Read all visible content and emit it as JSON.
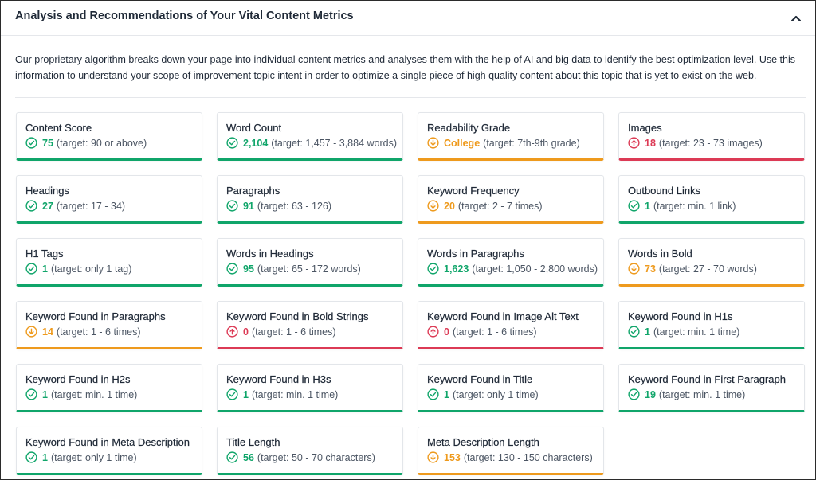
{
  "header": {
    "title": "Analysis and Recommendations of Your Vital Content Metrics"
  },
  "intro": "Our proprietary algorithm breaks down your page into individual content metrics and analyses them with the help of AI and big data to identify the best optimization level. Use this information to understand your scope of improvement topic intent in order to optimize a single piece of high quality content about this topic that is yet to exist on the web.",
  "colors": {
    "good": "#10a56a",
    "warn": "#ee9a1d",
    "bad": "#dc3a55"
  },
  "metrics": [
    {
      "title": "Content Score",
      "value": "75",
      "target": "(target: 90 or above)",
      "status": "good"
    },
    {
      "title": "Word Count",
      "value": "2,104",
      "target": "(target: 1,457 - 3,884 words)",
      "status": "good"
    },
    {
      "title": "Readability Grade",
      "value": "College",
      "target": "(target: 7th-9th grade)",
      "status": "warn"
    },
    {
      "title": "Images",
      "value": "18",
      "target": "(target: 23 - 73 images)",
      "status": "bad"
    },
    {
      "title": "Headings",
      "value": "27",
      "target": "(target: 17 - 34)",
      "status": "good"
    },
    {
      "title": "Paragraphs",
      "value": "91",
      "target": "(target: 63 - 126)",
      "status": "good"
    },
    {
      "title": "Keyword Frequency",
      "value": "20",
      "target": "(target: 2 - 7 times)",
      "status": "warn"
    },
    {
      "title": "Outbound Links",
      "value": "1",
      "target": "(target: min. 1 link)",
      "status": "good"
    },
    {
      "title": "H1 Tags",
      "value": "1",
      "target": "(target: only 1 tag)",
      "status": "good"
    },
    {
      "title": "Words in Headings",
      "value": "95",
      "target": "(target: 65 - 172 words)",
      "status": "good"
    },
    {
      "title": "Words in Paragraphs",
      "value": "1,623",
      "target": "(target: 1,050 - 2,800 words)",
      "status": "good"
    },
    {
      "title": "Words in Bold",
      "value": "73",
      "target": "(target: 27 - 70 words)",
      "status": "warn"
    },
    {
      "title": "Keyword Found in Paragraphs",
      "value": "14",
      "target": "(target: 1 - 6 times)",
      "status": "warn"
    },
    {
      "title": "Keyword Found in Bold Strings",
      "value": "0",
      "target": "(target: 1 - 6 times)",
      "status": "bad"
    },
    {
      "title": "Keyword Found in Image Alt Text",
      "value": "0",
      "target": "(target: 1 - 6 times)",
      "status": "bad"
    },
    {
      "title": "Keyword Found in H1s",
      "value": "1",
      "target": "(target: min. 1 time)",
      "status": "good"
    },
    {
      "title": "Keyword Found in H2s",
      "value": "1",
      "target": "(target: min. 1 time)",
      "status": "good"
    },
    {
      "title": "Keyword Found in H3s",
      "value": "1",
      "target": "(target: min. 1 time)",
      "status": "good"
    },
    {
      "title": "Keyword Found in Title",
      "value": "1",
      "target": "(target: only 1 time)",
      "status": "good"
    },
    {
      "title": "Keyword Found in First Paragraph",
      "value": "19",
      "target": "(target: min. 1 time)",
      "status": "good"
    },
    {
      "title": "Keyword Found in Meta Description",
      "value": "1",
      "target": "(target: only 1 time)",
      "status": "good"
    },
    {
      "title": "Title Length",
      "value": "56",
      "target": "(target: 50 - 70 characters)",
      "status": "good"
    },
    {
      "title": "Meta Description Length",
      "value": "153",
      "target": "(target: 130 - 150 characters)",
      "status": "warn"
    }
  ]
}
